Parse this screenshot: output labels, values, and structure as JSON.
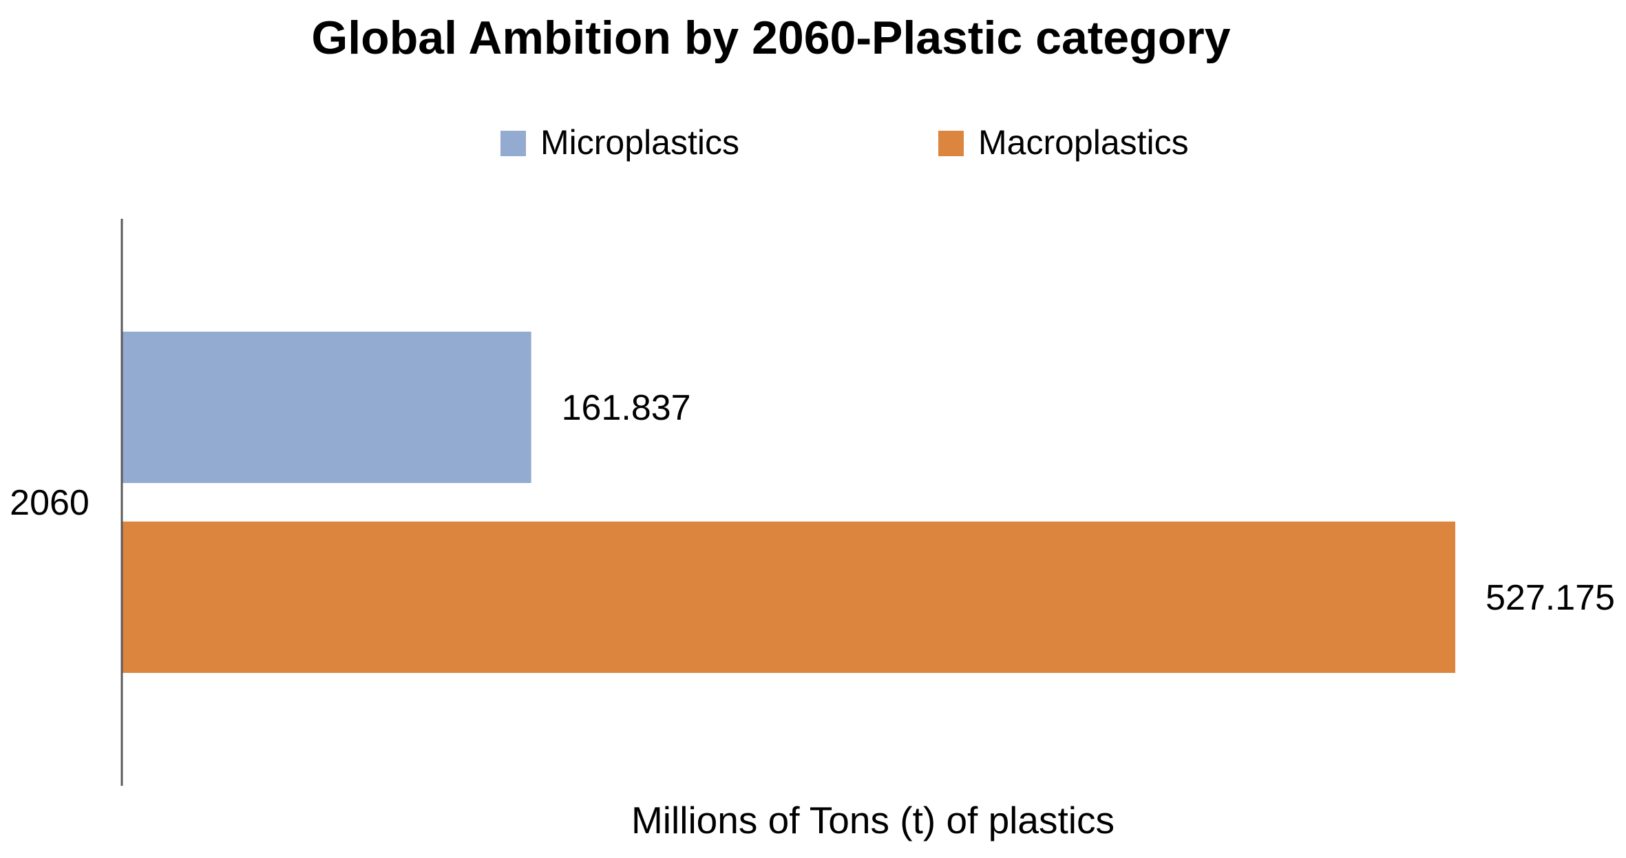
{
  "chart_data": {
    "type": "bar",
    "orientation": "horizontal",
    "title": "Global Ambition by 2060-Plastic category",
    "xlabel": "Millions of Tons (t) of plastics",
    "ylabel": "",
    "categories": [
      "2060"
    ],
    "series": [
      {
        "name": "Microplastics",
        "values": [
          161.837
        ],
        "color": "#93ABD0"
      },
      {
        "name": "Macroplastics",
        "values": [
          527.175
        ],
        "color": "#DC853F"
      }
    ],
    "data_labels": [
      "161.837",
      "527.175"
    ],
    "xlim": [
      0,
      527.175
    ],
    "grid": false,
    "legend_position": "top",
    "axis_color": "#595959"
  }
}
